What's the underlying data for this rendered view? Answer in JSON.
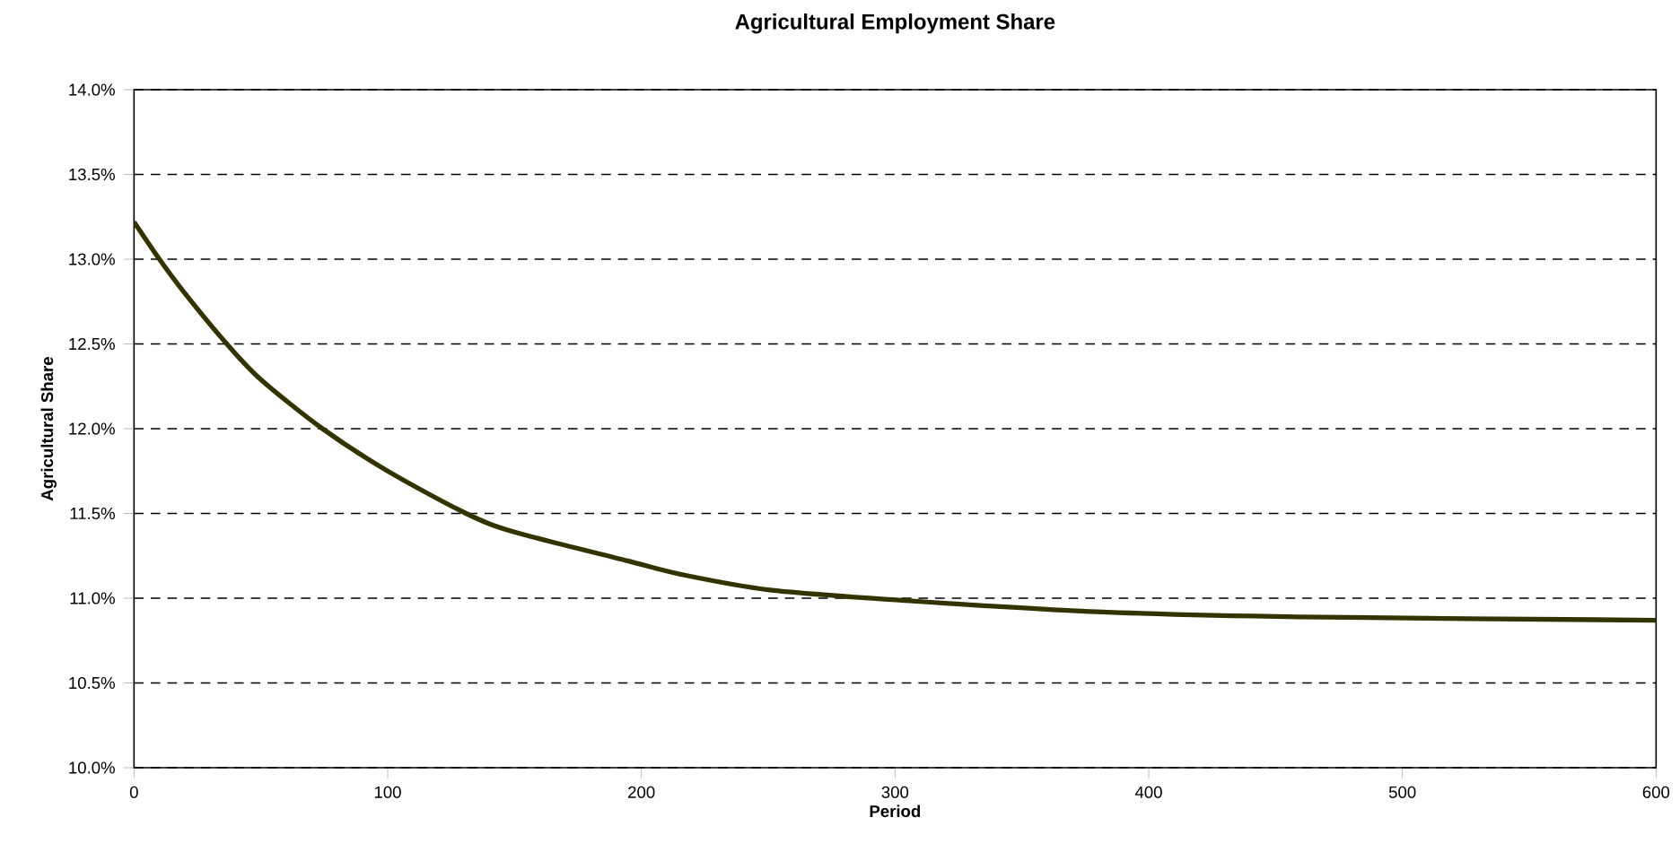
{
  "chart_data": {
    "type": "line",
    "title": "Agricultural Employment Share",
    "xlabel": "Period",
    "ylabel": "Agricultural Share",
    "x": [
      0,
      10,
      20,
      36.6,
      50,
      74.3,
      100,
      130.9,
      150,
      194.6,
      215.8,
      250,
      300.4,
      379.7,
      459,
      600
    ],
    "series": [
      {
        "color": "#333300",
        "values": [
          13.22,
          13.0,
          12.8,
          12.5,
          12.29,
          12.0,
          11.75,
          11.5,
          11.39,
          11.22,
          11.14,
          11.05,
          10.99,
          10.92,
          10.89,
          10.87
        ]
      }
    ],
    "xlim": [
      0,
      600
    ],
    "ylim": [
      10,
      14
    ],
    "xticks": [
      0,
      100,
      200,
      300,
      400,
      500,
      600
    ],
    "yticks": [
      {
        "value": 10,
        "label": "10.0%"
      },
      {
        "value": 10.5,
        "label": "10.5%"
      },
      {
        "value": 11,
        "label": "11.0%"
      },
      {
        "value": 11.5,
        "label": "11.5%"
      },
      {
        "value": 12,
        "label": "12.0%"
      },
      {
        "value": 12.5,
        "label": "12.5%"
      },
      {
        "value": 13,
        "label": "13.0%"
      },
      {
        "value": 13.5,
        "label": "13.5%"
      },
      {
        "value": 14,
        "label": "14.0%"
      }
    ],
    "grid": "y",
    "marker": "none",
    "line_style": "solid"
  }
}
